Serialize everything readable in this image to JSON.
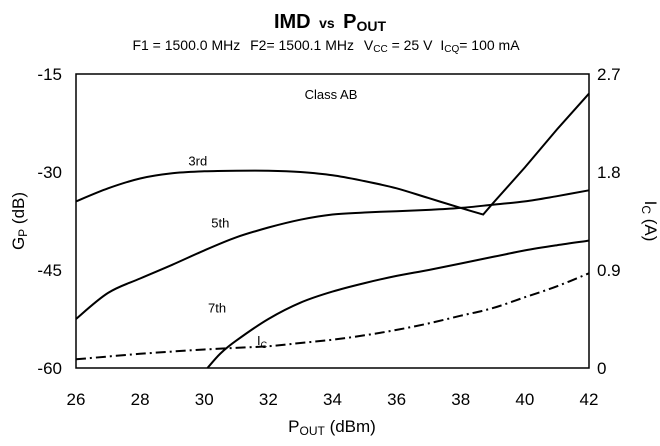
{
  "chart_data": {
    "type": "line",
    "title": {
      "main": "IMD",
      "vs": "vs",
      "p": "P",
      "sub": "OUT"
    },
    "subtitle": {
      "f1": "F1 = 1500.0 MHz",
      "f2": "F2= 1500.1 MHz",
      "vcc": "V",
      "vcc_sub": "CC",
      "vcc_val": " = 25 V",
      "icq": "I",
      "icq_sub": "CQ",
      "icq_val": "= 100 mA"
    },
    "x_axis": {
      "label_main": "P",
      "label_sub": "OUT",
      "label_rest": " (dBm)",
      "range": [
        26,
        42
      ],
      "ticks": [
        "26",
        "28",
        "30",
        "32",
        "34",
        "36",
        "38",
        "40",
        "42"
      ]
    },
    "y_axis_left": {
      "label_main": "G",
      "label_sub": "P",
      "label_rest": " (dB)",
      "range": [
        -60,
        -15
      ],
      "ticks": [
        "-15",
        "-30",
        "-45",
        "-60"
      ]
    },
    "y_axis_right": {
      "label_main": "I",
      "label_sub": "C",
      "label_rest": " (A)",
      "range": [
        0,
        2.7
      ],
      "ticks": [
        "2.7",
        "1.8",
        "0.9",
        "0"
      ]
    },
    "annotation": "Class AB",
    "series": [
      {
        "name": "3rd",
        "axis": "left",
        "dash": "solid",
        "x": [
          26,
          27,
          28,
          29,
          30,
          31,
          32,
          33,
          34,
          35,
          36,
          37,
          38,
          38.7,
          39,
          40,
          41,
          42
        ],
        "y": [
          -34.5,
          -32.5,
          -31,
          -30.2,
          -29.9,
          -29.8,
          -29.8,
          -30,
          -30.5,
          -31.4,
          -32.5,
          -34,
          -35.5,
          -36.5,
          -34.8,
          -29.3,
          -23.5,
          -18
        ]
      },
      {
        "name": "5th",
        "axis": "left",
        "dash": "solid",
        "x": [
          26,
          27,
          28,
          29,
          30,
          31,
          32,
          33,
          34,
          35,
          36,
          37,
          38,
          39,
          40,
          41,
          42
        ],
        "y": [
          -52.5,
          -48.5,
          -46.3,
          -44.2,
          -42,
          -40,
          -38.5,
          -37.3,
          -36.5,
          -36.2,
          -36,
          -35.8,
          -35.5,
          -35,
          -34.5,
          -33.7,
          -32.8
        ]
      },
      {
        "name": "7th",
        "axis": "left",
        "dash": "solid",
        "x": [
          30.1,
          30.5,
          31,
          32,
          33,
          34,
          35,
          36,
          37,
          38,
          39,
          40,
          41,
          42
        ],
        "y": [
          -60,
          -57.8,
          -55.8,
          -52.5,
          -50,
          -48.3,
          -47,
          -45.9,
          -45,
          -44,
          -43,
          -42,
          -41.2,
          -40.5
        ]
      },
      {
        "name": "I",
        "name_sub": "C",
        "axis": "right",
        "dash": "dashdot",
        "x": [
          26,
          28,
          30,
          32,
          33,
          34,
          35,
          36,
          37,
          38,
          39,
          40,
          41,
          42
        ],
        "y": [
          0.08,
          0.13,
          0.17,
          0.2,
          0.23,
          0.26,
          0.3,
          0.35,
          0.41,
          0.48,
          0.55,
          0.65,
          0.75,
          0.87
        ]
      }
    ],
    "series_labels": [
      {
        "text": "3rd",
        "x": 29.8,
        "y": -29
      },
      {
        "text": "5th",
        "x": 30.5,
        "y": -38.5
      },
      {
        "text": "7th",
        "x": 30.4,
        "y": -51.5
      },
      {
        "text": "I",
        "sub": "C",
        "x": 31.8,
        "y": -56.5
      }
    ],
    "grid": false,
    "line_color": "#000000"
  }
}
